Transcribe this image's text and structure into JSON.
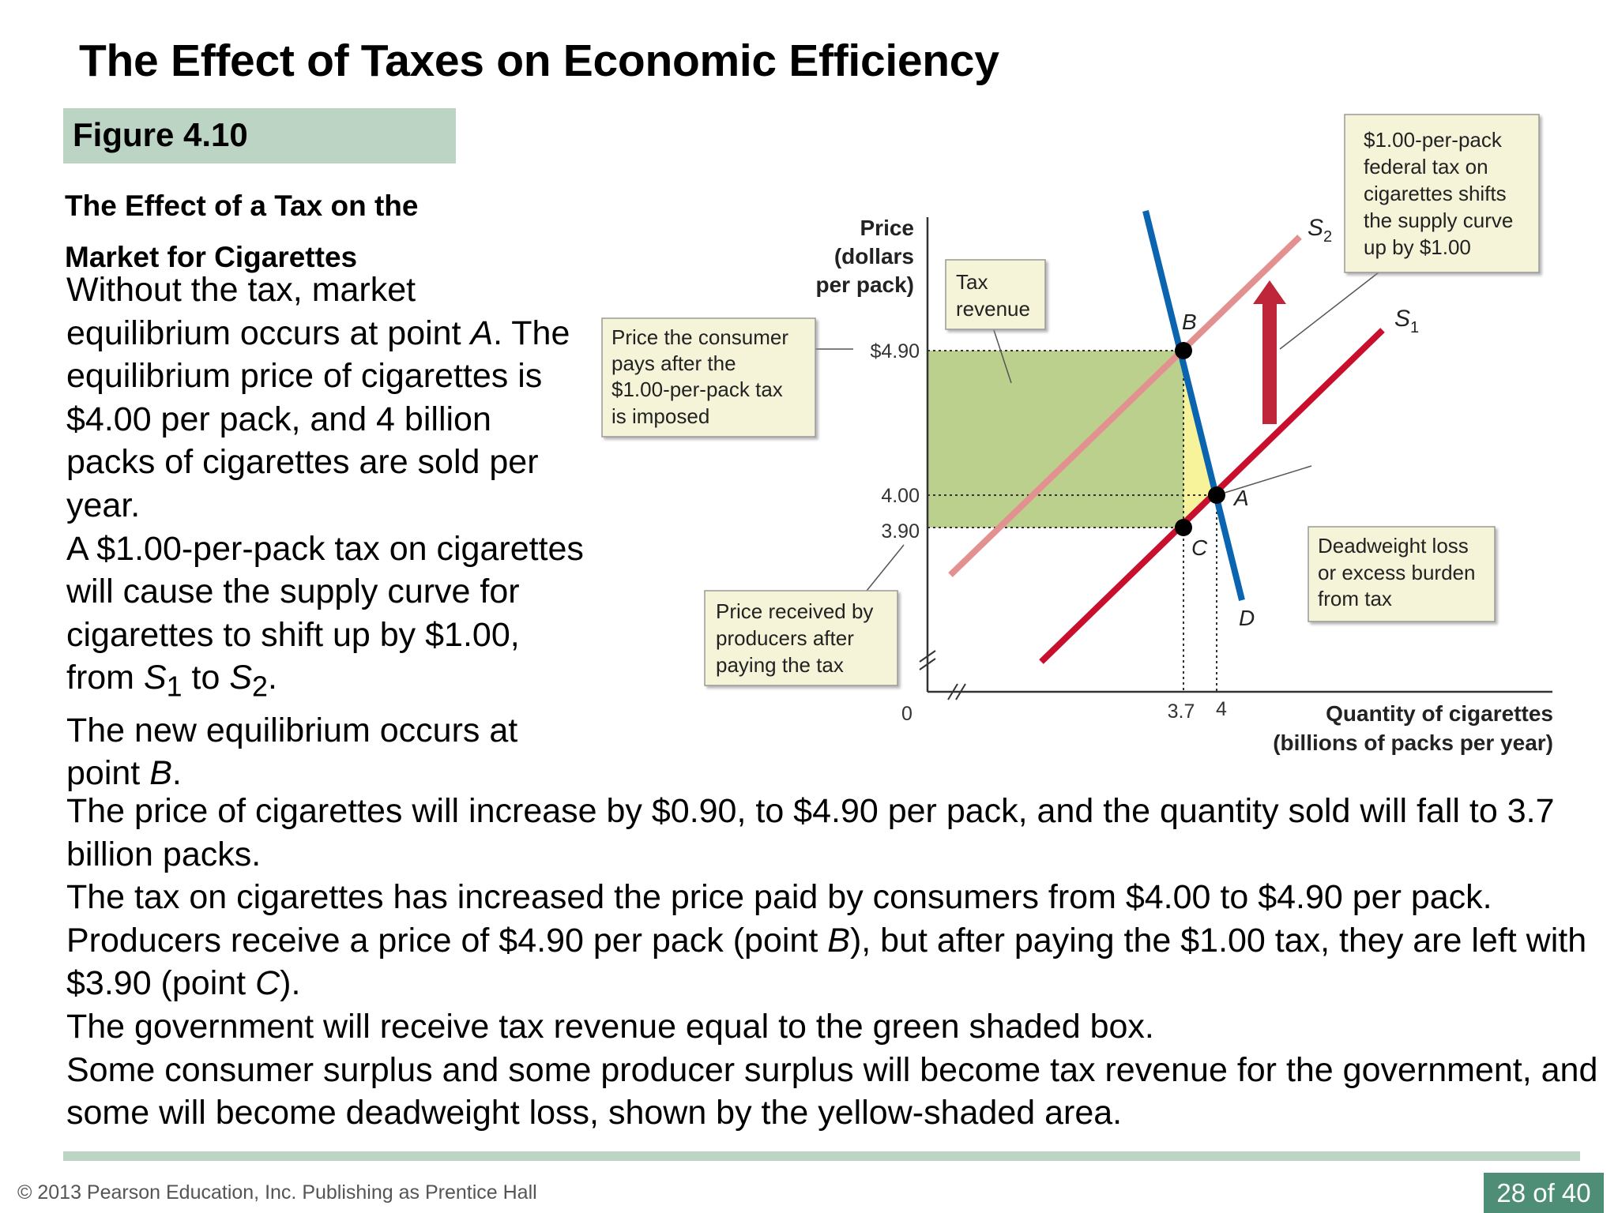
{
  "slide": {
    "title": "The Effect of Taxes on Economic Efficiency",
    "figure_label": "Figure 4.10",
    "figure_caption": "The Effect of a Tax on the Market for Cigarettes"
  },
  "paragraph_left": [
    "Without the tax, market equilibrium occurs at point ",
    "A",
    ". The equilibrium price of cigarettes is $4.00 per pack, and 4 billion packs of cigarettes are sold per year.",
    "A $1.00-per-pack tax on cigarettes will cause the supply curve for cigarettes to shift up by $1.00, from ",
    "S",
    "1",
    " to ",
    "S",
    "2",
    ".",
    "The new equilibrium occurs at point ",
    "B",
    "."
  ],
  "paragraph_bottom": [
    "The price of cigarettes will increase by $0.90, to $4.90 per pack, and the quantity sold will fall to 3.7 billion packs.",
    "The tax on cigarettes has increased the price paid by consumers from $4.00 to $4.90 per pack.",
    "Producers receive a price of $4.90 per pack (point ",
    "B",
    "), but after paying the $1.00 tax, they are left with $3.90 (point ",
    "C",
    ").",
    "The government will receive tax revenue equal to the green shaded box.",
    "Some consumer surplus and some producer surplus will become tax revenue for the government, and some will become deadweight loss, shown by the yellow-shaded area."
  ],
  "diagram": {
    "y_axis_label": [
      "Price",
      "(dollars",
      "per pack)"
    ],
    "x_axis_label": [
      "Quantity of cigarettes",
      "(billions of packs per year)"
    ],
    "y_ticks": [
      "$4.90",
      "4.00",
      "3.90"
    ],
    "x_ticks": [
      "0",
      "3.7",
      "4"
    ],
    "points": [
      "A",
      "B",
      "C"
    ],
    "curves": {
      "demand": "D",
      "supply_1": "S",
      "supply_1_sub": "1",
      "supply_2": "S",
      "supply_2_sub": "2"
    },
    "callouts": {
      "tax_revenue": [
        "Tax",
        "revenue"
      ],
      "consumer_price": [
        "Price the consumer",
        "pays after the",
        "$1.00-per-pack tax",
        "is imposed"
      ],
      "producer_price": [
        "Price received by",
        "producers after",
        "paying the tax"
      ],
      "deadweight": [
        "Deadweight loss",
        "or excess burden",
        "from tax"
      ],
      "shift": [
        "$1.00-per-pack",
        "federal tax on",
        "cigarettes shifts",
        "the supply curve",
        "up by $1.00"
      ]
    },
    "colors": {
      "demand": "#0a64b0",
      "supply_1": "#c8102e",
      "supply_2": "#e39090",
      "tax_revenue_fill": "#bcd08e",
      "deadweight_fill": "#f6f39a",
      "callout_fill": "#f5f4d9"
    }
  },
  "footer": {
    "copyright": "© 2013 Pearson Education, Inc. Publishing as Prentice Hall",
    "page": "28 of 40"
  }
}
